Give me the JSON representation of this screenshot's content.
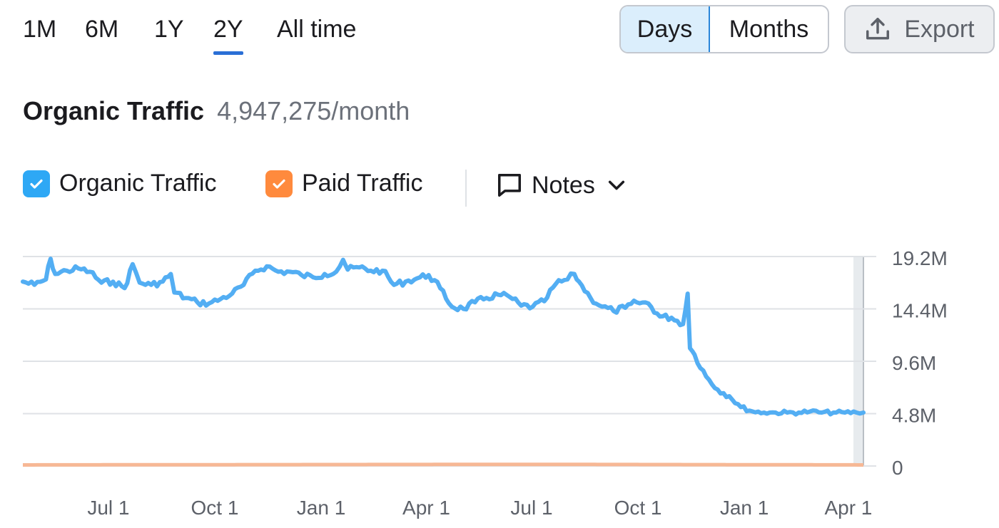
{
  "periods": [
    {
      "label": "1M",
      "active": false
    },
    {
      "label": "6M",
      "active": false
    },
    {
      "label": "1Y",
      "active": false
    },
    {
      "label": "2Y",
      "active": true
    },
    {
      "label": "All time",
      "active": false
    }
  ],
  "view_toggle": {
    "days": "Days",
    "months": "Months",
    "selected": "Days"
  },
  "export": {
    "label": "Export",
    "icon": "upload-icon"
  },
  "header": {
    "title": "Organic Traffic",
    "value": "4,947,275/month"
  },
  "legend": {
    "organic": {
      "label": "Organic Traffic",
      "checked": true,
      "color": "#2ea8f5"
    },
    "paid": {
      "label": "Paid Traffic",
      "checked": true,
      "color": "#ff8a3d"
    },
    "notes": {
      "label": "Notes",
      "icon": "notes-icon"
    }
  },
  "colors": {
    "organic_line": "#53aef3",
    "paid_line": "#f7b895",
    "grid": "#dfe2e6",
    "accent": "#2a6fd6"
  },
  "chart_data": {
    "type": "line",
    "x_axis": {
      "ticks": [
        "Jul 1",
        "Oct 1",
        "Jan 1",
        "Apr 1",
        "Jul 1",
        "Oct 1",
        "Jan 1",
        "Apr 1"
      ],
      "range": [
        "2023-04-18",
        "2025-04-14"
      ]
    },
    "y_axis": {
      "ticks": [
        "0",
        "4.8M",
        "9.6M",
        "14.4M",
        "19.2M"
      ],
      "ylim": [
        0,
        19200000
      ],
      "position": "right"
    },
    "grid": true,
    "series": [
      {
        "name": "Organic Traffic",
        "points": [
          [
            "2023-04-18",
            16.9
          ],
          [
            "2023-04-28",
            16.6
          ],
          [
            "2023-05-08",
            17.1
          ],
          [
            "2023-05-12",
            19.0
          ],
          [
            "2023-05-16",
            17.6
          ],
          [
            "2023-05-26",
            17.9
          ],
          [
            "2023-06-05",
            18.1
          ],
          [
            "2023-06-15",
            17.8
          ],
          [
            "2023-06-25",
            16.8
          ],
          [
            "2023-07-05",
            16.9
          ],
          [
            "2023-07-15",
            16.3
          ],
          [
            "2023-07-22",
            18.5
          ],
          [
            "2023-07-28",
            16.8
          ],
          [
            "2023-08-07",
            16.6
          ],
          [
            "2023-08-17",
            16.9
          ],
          [
            "2023-08-24",
            17.6
          ],
          [
            "2023-08-27",
            15.9
          ],
          [
            "2023-09-06",
            15.4
          ],
          [
            "2023-09-16",
            15.0
          ],
          [
            "2023-09-26",
            14.9
          ],
          [
            "2023-10-06",
            15.3
          ],
          [
            "2023-10-16",
            15.8
          ],
          [
            "2023-10-26",
            16.6
          ],
          [
            "2023-11-05",
            17.9
          ],
          [
            "2023-11-15",
            18.3
          ],
          [
            "2023-11-25",
            17.8
          ],
          [
            "2023-12-05",
            17.8
          ],
          [
            "2023-12-15",
            17.5
          ],
          [
            "2023-12-25",
            17.3
          ],
          [
            "2024-01-04",
            17.6
          ],
          [
            "2024-01-14",
            17.8
          ],
          [
            "2024-01-20",
            18.9
          ],
          [
            "2024-01-24",
            18.0
          ],
          [
            "2024-02-03",
            18.2
          ],
          [
            "2024-02-13",
            17.9
          ],
          [
            "2024-02-23",
            17.9
          ],
          [
            "2024-03-04",
            16.6
          ],
          [
            "2024-03-14",
            16.9
          ],
          [
            "2024-03-24",
            17.2
          ],
          [
            "2024-04-03",
            17.5
          ],
          [
            "2024-04-13",
            16.3
          ],
          [
            "2024-04-23",
            14.6
          ],
          [
            "2024-05-03",
            14.4
          ],
          [
            "2024-05-13",
            15.0
          ],
          [
            "2024-05-23",
            15.4
          ],
          [
            "2024-06-02",
            15.7
          ],
          [
            "2024-06-12",
            15.5
          ],
          [
            "2024-06-22",
            14.7
          ],
          [
            "2024-07-02",
            14.6
          ],
          [
            "2024-07-12",
            15.1
          ],
          [
            "2024-07-22",
            16.7
          ],
          [
            "2024-08-01",
            17.1
          ],
          [
            "2024-08-07",
            17.6
          ],
          [
            "2024-08-11",
            16.9
          ],
          [
            "2024-08-21",
            15.4
          ],
          [
            "2024-08-31",
            14.6
          ],
          [
            "2024-09-10",
            14.2
          ],
          [
            "2024-09-20",
            14.5
          ],
          [
            "2024-09-30",
            15.0
          ],
          [
            "2024-10-10",
            14.9
          ],
          [
            "2024-10-20",
            13.7
          ],
          [
            "2024-10-30",
            13.6
          ],
          [
            "2024-11-09",
            13.0
          ],
          [
            "2024-11-13",
            15.8
          ],
          [
            "2024-11-15",
            10.8
          ],
          [
            "2024-11-19",
            10.2
          ],
          [
            "2024-11-29",
            8.2
          ],
          [
            "2024-12-09",
            7.0
          ],
          [
            "2024-12-19",
            6.4
          ],
          [
            "2024-12-29",
            5.4
          ],
          [
            "2025-01-08",
            5.0
          ],
          [
            "2025-01-18",
            4.9
          ],
          [
            "2025-01-28",
            4.9
          ],
          [
            "2025-02-07",
            4.9
          ],
          [
            "2025-02-17",
            4.9
          ],
          [
            "2025-02-27",
            5.0
          ],
          [
            "2025-03-09",
            4.9
          ],
          [
            "2025-03-19",
            4.9
          ],
          [
            "2025-03-29",
            4.9
          ],
          [
            "2025-04-08",
            4.9
          ],
          [
            "2025-04-14",
            4.9
          ]
        ],
        "unit": "M"
      },
      {
        "name": "Paid Traffic",
        "points": [
          [
            "2023-04-18",
            0.1
          ],
          [
            "2024-07-01",
            0.15
          ],
          [
            "2025-04-14",
            0.1
          ]
        ],
        "unit": "M"
      }
    ]
  }
}
